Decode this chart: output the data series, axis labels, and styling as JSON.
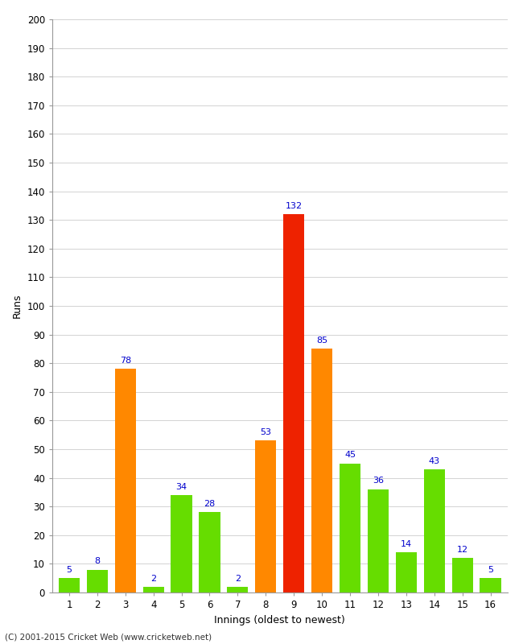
{
  "innings": [
    1,
    2,
    3,
    4,
    5,
    6,
    7,
    8,
    9,
    10,
    11,
    12,
    13,
    14,
    15,
    16
  ],
  "values": [
    5,
    8,
    78,
    2,
    34,
    28,
    2,
    53,
    132,
    85,
    45,
    36,
    14,
    43,
    12,
    5
  ],
  "colors": [
    "#66dd00",
    "#66dd00",
    "#ff8800",
    "#66dd00",
    "#66dd00",
    "#66dd00",
    "#66dd00",
    "#ff8800",
    "#ee2200",
    "#ff8800",
    "#66dd00",
    "#66dd00",
    "#66dd00",
    "#66dd00",
    "#66dd00",
    "#66dd00"
  ],
  "xlabel": "Innings (oldest to newest)",
  "ylabel": "Runs",
  "ylim": [
    0,
    200
  ],
  "yticks": [
    0,
    10,
    20,
    30,
    40,
    50,
    60,
    70,
    80,
    90,
    100,
    110,
    120,
    130,
    140,
    150,
    160,
    170,
    180,
    190,
    200
  ],
  "footer": "(C) 2001-2015 Cricket Web (www.cricketweb.net)",
  "background_color": "#ffffff",
  "label_color": "#0000cc",
  "label_fontsize": 8.0
}
